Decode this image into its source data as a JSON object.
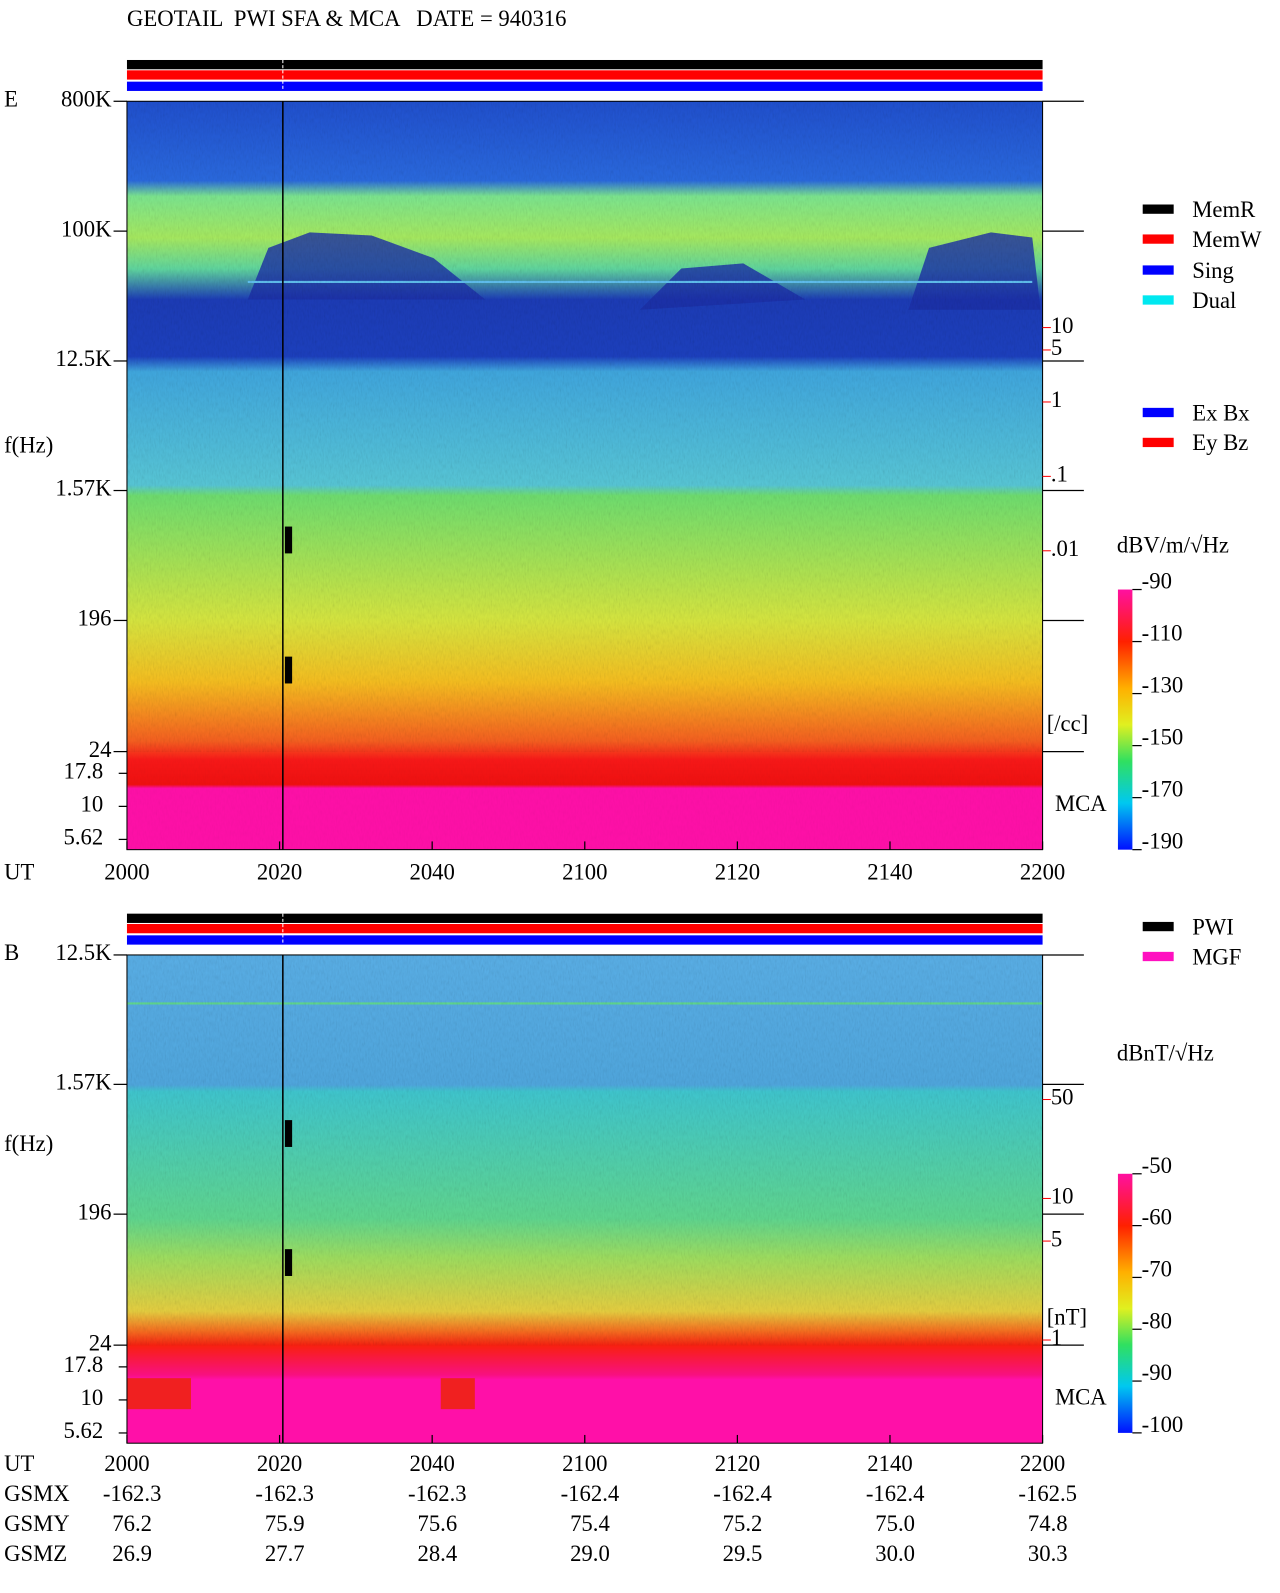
{
  "title": "GEOTAIL  PWI SFA & MCA   DATE = 940316",
  "chart_data": [
    {
      "type": "spectrogram",
      "panel_label": "E",
      "y_label": "f(Hz)",
      "x_label": "UT",
      "categories": [
        "2000",
        "2020",
        "2040",
        "2100",
        "2120",
        "2140",
        "2200"
      ],
      "log_y": true,
      "ylim": [
        24,
        800000
      ],
      "yticks": [
        {
          "value": 800000,
          "label": "800K"
        },
        {
          "value": 100000,
          "label": "100K"
        },
        {
          "value": 12500,
          "label": "12.5K"
        },
        {
          "value": 1570,
          "label": "1.57K"
        },
        196,
        24
      ],
      "mca_label": "MCA",
      "mca_ylim": [
        4.7,
        26
      ],
      "mca_yticks": [
        17.8,
        10,
        5.62
      ],
      "y2_color": "#ff0000",
      "y2lim": [
        2e-05,
        11000
      ],
      "y2ticks": [
        10,
        5,
        1,
        {
          "value": 0.1,
          "label": ".1"
        },
        {
          "value": 0.01,
          "label": ".01"
        }
      ],
      "y2_label": "[/cc]",
      "colorbar_label": "dBV/m/√Hz",
      "colorbar_lim": [
        -190,
        -90
      ],
      "colorbar_ticks": [
        -90,
        -110,
        -130,
        -150,
        -170,
        -190
      ],
      "legend": [
        {
          "name": "MemR",
          "color": "#000000"
        },
        {
          "name": "MemW",
          "color": "#ff0000"
        },
        {
          "name": "Sing",
          "color": "#0000ff"
        },
        {
          "name": "Dual",
          "color": "#00e8f0"
        }
      ],
      "legend_components": [
        {
          "name": "Ex Bx",
          "color": "#0000ff"
        },
        {
          "name": "Ey Bz",
          "color": "#ff0000"
        }
      ]
    },
    {
      "type": "spectrogram",
      "panel_label": "B",
      "y_label": "f(Hz)",
      "x_label": "UT",
      "categories": [
        "2000",
        "2020",
        "2040",
        "2100",
        "2120",
        "2140",
        "2200"
      ],
      "log_y": true,
      "ylim": [
        24,
        12500
      ],
      "yticks": [
        {
          "value": 12500,
          "label": "12.5K"
        },
        {
          "value": 1570,
          "label": "1.57K"
        },
        196,
        24
      ],
      "mca_label": "MCA",
      "mca_ylim": [
        4.7,
        26
      ],
      "mca_yticks": [
        17.8,
        10,
        5.62
      ],
      "y2_color": "#ff0000",
      "y2lim": [
        0.92,
        525
      ],
      "y2ticks": [
        50,
        10,
        5,
        1
      ],
      "y2_label": "[nT]",
      "colorbar_label": "dBnT/√Hz",
      "colorbar_lim": [
        -100,
        -50
      ],
      "colorbar_ticks": [
        -50,
        -60,
        -70,
        -80,
        -90,
        -100
      ],
      "legend": [
        {
          "name": "PWI",
          "color": "#000000"
        },
        {
          "name": "MGF",
          "color": "#ff10c0"
        }
      ],
      "orbit": [
        {
          "name": "GSMX",
          "values": [
            -162.3,
            -162.3,
            -162.3,
            -162.4,
            -162.4,
            -162.4,
            -162.5
          ]
        },
        {
          "name": "GSMY",
          "values": [
            76.2,
            75.9,
            75.6,
            75.4,
            75.2,
            75.0,
            74.8
          ],
          "value_labels": [
            "76.2",
            "75.9",
            "75.6",
            "75.4",
            "75.2",
            "75.0",
            "74.8"
          ]
        },
        {
          "name": "GSMZ",
          "values": [
            26.9,
            27.7,
            28.4,
            29.0,
            29.5,
            30.0,
            30.3
          ],
          "value_labels": [
            "26.9",
            "27.7",
            "28.4",
            "29.0",
            "29.5",
            "30.0",
            "30.3"
          ]
        }
      ]
    }
  ]
}
